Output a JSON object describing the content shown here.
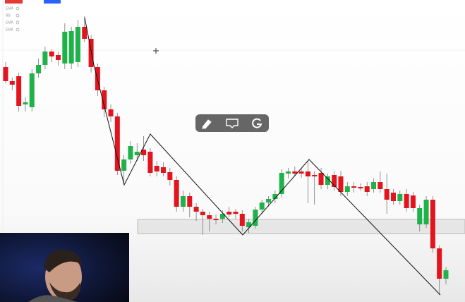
{
  "chart_data": {
    "type": "candlestick",
    "indicator_labels": [
      "EMA",
      "BB",
      "EMA",
      "EMA"
    ],
    "ylim": [
      0,
      428
    ],
    "up_color": "#1fb24a",
    "down_color": "#e3141d",
    "candles": [
      [
        333,
        340,
        310,
        313
      ],
      [
        313,
        318,
        300,
        308
      ],
      [
        320,
        325,
        270,
        278
      ],
      [
        280,
        290,
        270,
        283
      ],
      [
        276,
        330,
        270,
        324
      ],
      [
        324,
        345,
        318,
        336
      ],
      [
        336,
        362,
        330,
        355
      ],
      [
        355,
        358,
        340,
        348
      ],
      [
        350,
        355,
        335,
        343
      ],
      [
        338,
        395,
        330,
        383
      ],
      [
        338,
        390,
        330,
        384
      ],
      [
        340,
        400,
        333,
        390
      ],
      [
        390,
        405,
        368,
        373
      ],
      [
        373,
        378,
        325,
        333
      ],
      [
        333,
        338,
        292,
        300
      ],
      [
        300,
        305,
        262,
        273
      ],
      [
        273,
        280,
        255,
        263
      ],
      [
        263,
        268,
        180,
        186
      ],
      [
        186,
        208,
        168,
        202
      ],
      [
        202,
        228,
        196,
        221
      ],
      [
        208,
        225,
        200,
        213
      ],
      [
        216,
        235,
        200,
        208
      ],
      [
        213,
        218,
        178,
        183
      ],
      [
        193,
        200,
        178,
        185
      ],
      [
        191,
        198,
        178,
        183
      ],
      [
        184,
        190,
        165,
        173
      ],
      [
        173,
        178,
        128,
        135
      ],
      [
        135,
        158,
        128,
        150
      ],
      [
        150,
        155,
        120,
        135
      ],
      [
        135,
        140,
        115,
        128
      ],
      [
        128,
        132,
        95,
        123
      ],
      [
        123,
        128,
        100,
        118
      ],
      [
        118,
        124,
        110,
        116
      ],
      [
        118,
        130,
        112,
        125
      ],
      [
        128,
        135,
        120,
        124
      ],
      [
        128,
        132,
        118,
        125
      ],
      [
        125,
        130,
        100,
        108
      ],
      [
        106,
        118,
        98,
        113
      ],
      [
        108,
        135,
        104,
        131
      ],
      [
        131,
        145,
        125,
        141
      ],
      [
        141,
        150,
        135,
        146
      ],
      [
        146,
        158,
        140,
        153
      ],
      [
        153,
        188,
        148,
        183
      ],
      [
        182,
        190,
        175,
        185
      ],
      [
        185,
        192,
        178,
        182
      ],
      [
        185,
        190,
        176,
        182
      ],
      [
        185,
        200,
        140,
        178
      ],
      [
        180,
        185,
        138,
        178
      ],
      [
        183,
        190,
        160,
        166
      ],
      [
        166,
        182,
        160,
        178
      ],
      [
        180,
        185,
        158,
        163
      ],
      [
        178,
        186,
        150,
        156
      ],
      [
        156,
        170,
        150,
        164
      ],
      [
        164,
        170,
        155,
        162
      ],
      [
        163,
        168,
        158,
        161
      ],
      [
        164,
        170,
        150,
        156
      ],
      [
        160,
        175,
        155,
        170
      ],
      [
        170,
        185,
        155,
        160
      ],
      [
        160,
        182,
        125,
        145
      ],
      [
        155,
        160,
        138,
        143
      ],
      [
        143,
        158,
        138,
        153
      ],
      [
        153,
        160,
        128,
        133
      ],
      [
        151,
        156,
        128,
        133
      ],
      [
        110,
        138,
        100,
        133
      ],
      [
        110,
        150,
        105,
        145
      ],
      [
        145,
        150,
        70,
        76
      ],
      [
        76,
        80,
        10,
        33
      ],
      [
        33,
        50,
        25,
        45
      ]
    ]
  }
}
